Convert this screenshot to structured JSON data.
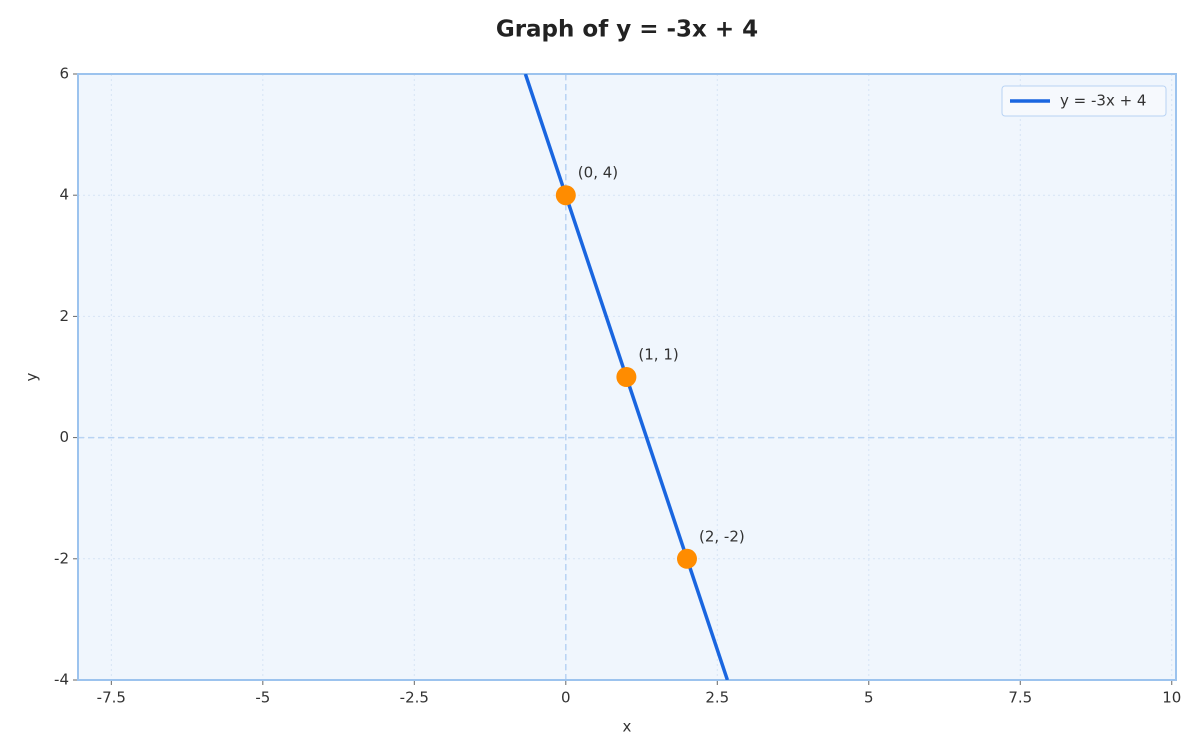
{
  "chart_data": {
    "type": "line",
    "title": "Graph of y = -3x + 4",
    "xlabel": "x",
    "ylabel": "y",
    "xlim": [
      -8.05,
      10.07
    ],
    "ylim": [
      -4,
      6
    ],
    "xticks": [
      -7.5,
      -5,
      -2.5,
      0,
      2.5,
      5,
      7.5,
      10
    ],
    "yticks": [
      -4,
      -2,
      0,
      2,
      4,
      6
    ],
    "grid": true,
    "legend": "upper right",
    "series": [
      {
        "name": "y = -3x + 4",
        "color": "#1a66e0",
        "x": [
          -0.667,
          2.667
        ],
        "values": [
          6,
          -4
        ]
      }
    ],
    "points": {
      "color": "#ff8c00",
      "x": [
        0,
        1,
        2
      ],
      "values": [
        4,
        1,
        -2
      ],
      "labels": [
        "(0, 4)",
        "(1, 1)",
        "(2, -2)"
      ]
    }
  }
}
